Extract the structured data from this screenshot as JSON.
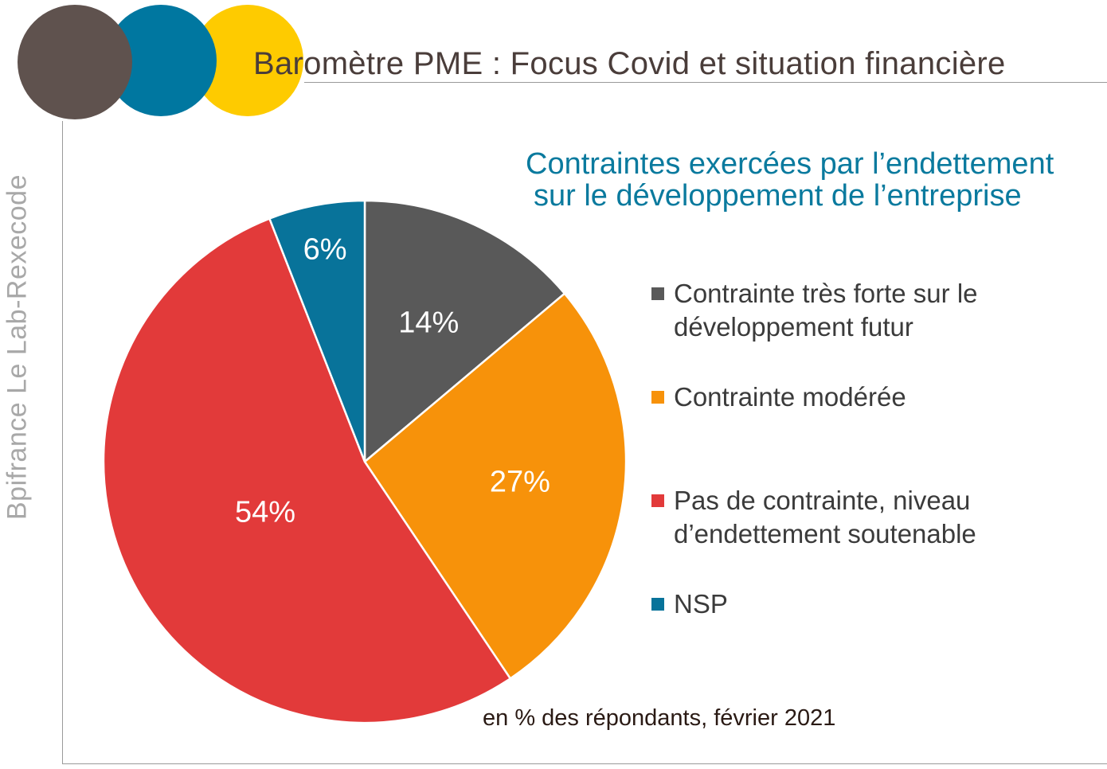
{
  "header": {
    "title": "Baromètre PME : Focus Covid et situation financière",
    "side_label": "Bpifrance Le Lab-Rexecode"
  },
  "colors": {
    "brand_brown": "#5f524e",
    "brand_blue": "#0077a0",
    "brand_yellow": "#fecb00"
  },
  "chart_data": {
    "type": "pie",
    "title": "Contraintes exercées par l’endettement sur le développement de l’entreprise",
    "title_lines": [
      "Contraintes exercées par l’endettement",
      "sur le développement de l’entreprise"
    ],
    "unit": "%",
    "slices": [
      {
        "label": "Contrainte très forte sur le développement futur",
        "value": 14,
        "display": "14%",
        "color": "#595959",
        "label_lines": [
          "Contrainte très forte sur le",
          "développement futur"
        ]
      },
      {
        "label": "Contrainte modérée",
        "value": 27,
        "display": "27%",
        "color": "#f7920a",
        "label_lines": [
          "Contrainte modérée"
        ]
      },
      {
        "label": "Pas de contrainte, niveau d’endettement soutenable",
        "value": 54,
        "display": "54%",
        "color": "#e23a3a",
        "label_lines": [
          "Pas de contrainte, niveau",
          "d’endettement soutenable"
        ]
      },
      {
        "label": "NSP",
        "value": 6,
        "display": "6%",
        "color": "#08739a",
        "label_lines": [
          "NSP"
        ]
      }
    ],
    "legend_position": "right",
    "note": "en % des répondants, février 2021"
  }
}
